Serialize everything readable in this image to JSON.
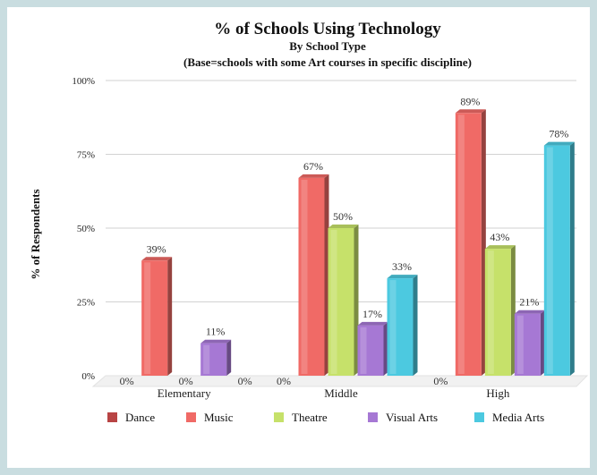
{
  "chart_data": {
    "type": "bar",
    "title": "% of Schools Using Technology",
    "subtitle": "By School Type",
    "subtitle2": "(Base=schools with some Art courses in specific discipline)",
    "ylabel": "% of Respondents",
    "xlabel": "",
    "ylim": [
      0,
      100
    ],
    "yticks": [
      "0%",
      "25%",
      "50%",
      "75%",
      "100%"
    ],
    "grid": true,
    "legend_position": "bottom",
    "categories": [
      "Elementary",
      "Middle",
      "High"
    ],
    "series": [
      {
        "name": "Dance",
        "color": "#b84444",
        "values": [
          0,
          0,
          0
        ],
        "labels": [
          "0%",
          "0%",
          "0%"
        ]
      },
      {
        "name": "Music",
        "color": "#f06a66",
        "values": [
          39,
          67,
          89
        ],
        "labels": [
          "39%",
          "67%",
          "89%"
        ]
      },
      {
        "name": "Theatre",
        "color": "#c6e16a",
        "values": [
          0,
          50,
          43
        ],
        "labels": [
          "0%",
          "50%",
          "43%"
        ]
      },
      {
        "name": "Visual Arts",
        "color": "#a678d4",
        "values": [
          11,
          17,
          21
        ],
        "labels": [
          "11%",
          "17%",
          "21%"
        ]
      },
      {
        "name": "Media Arts",
        "color": "#4cc9e0",
        "values": [
          0,
          33,
          78
        ],
        "labels": [
          "0%",
          "33%",
          "78%"
        ]
      }
    ]
  }
}
